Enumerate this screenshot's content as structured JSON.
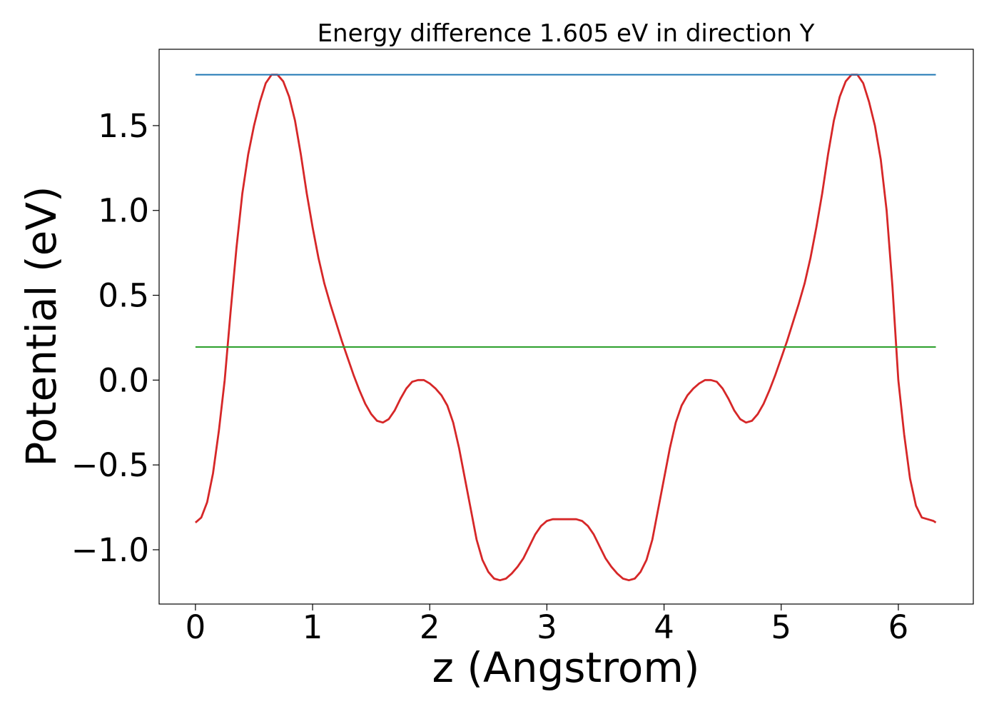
{
  "chart_data": {
    "type": "line",
    "title": "Energy difference 1.605 eV in direction Y",
    "xlabel": "z (Angstrom)",
    "ylabel": "Potential (eV)",
    "xlim": [
      -0.31,
      6.64
    ],
    "ylim": [
      -1.32,
      1.95
    ],
    "xticks": [
      0,
      1,
      2,
      3,
      4,
      5,
      6
    ],
    "yticks": [
      -1.0,
      -0.5,
      0.0,
      0.5,
      1.0,
      1.5
    ],
    "xtick_labels": [
      "0",
      "1",
      "2",
      "3",
      "4",
      "5",
      "6"
    ],
    "ytick_labels": [
      "−1.0",
      "−0.5",
      "0.0",
      "0.5",
      "1.0",
      "1.5"
    ],
    "grid": false,
    "series": [
      {
        "color": "#d62728",
        "x": [
          0.0,
          0.05,
          0.1,
          0.15,
          0.2,
          0.25,
          0.3,
          0.35,
          0.4,
          0.45,
          0.5,
          0.55,
          0.6,
          0.65,
          0.7,
          0.75,
          0.8,
          0.85,
          0.9,
          0.95,
          1.0,
          1.05,
          1.1,
          1.15,
          1.2,
          1.25,
          1.3,
          1.35,
          1.4,
          1.45,
          1.5,
          1.55,
          1.6,
          1.65,
          1.7,
          1.75,
          1.8,
          1.85,
          1.9,
          1.95,
          2.0,
          2.05,
          2.1,
          2.15,
          2.2,
          2.25,
          2.3,
          2.35,
          2.4,
          2.45,
          2.5,
          2.55,
          2.6,
          2.65,
          2.7,
          2.75,
          2.8,
          2.85,
          2.9,
          2.95,
          3.0,
          3.05,
          3.1,
          3.15,
          3.2,
          3.25,
          3.3,
          3.35,
          3.4,
          3.45,
          3.5,
          3.55,
          3.6,
          3.65,
          3.7,
          3.75,
          3.8,
          3.85,
          3.9,
          3.95,
          4.0,
          4.05,
          4.1,
          4.15,
          4.2,
          4.25,
          4.3,
          4.35,
          4.4,
          4.45,
          4.5,
          4.55,
          4.6,
          4.65,
          4.7,
          4.75,
          4.8,
          4.85,
          4.9,
          4.95,
          5.0,
          5.05,
          5.1,
          5.15,
          5.2,
          5.25,
          5.3,
          5.35,
          5.4,
          5.45,
          5.5,
          5.55,
          5.6,
          5.65,
          5.7,
          5.75,
          5.8,
          5.85,
          5.9,
          5.95,
          6.0,
          6.05,
          6.1,
          6.15,
          6.2,
          6.25,
          6.3,
          6.32
        ],
        "values": [
          -0.84,
          -0.81,
          -0.72,
          -0.55,
          -0.3,
          0.0,
          0.4,
          0.78,
          1.1,
          1.33,
          1.5,
          1.64,
          1.75,
          1.8,
          1.8,
          1.76,
          1.67,
          1.53,
          1.33,
          1.1,
          0.9,
          0.72,
          0.57,
          0.45,
          0.34,
          0.23,
          0.13,
          0.03,
          -0.06,
          -0.14,
          -0.2,
          -0.24,
          -0.25,
          -0.23,
          -0.18,
          -0.11,
          -0.05,
          -0.01,
          0.0,
          0.0,
          -0.02,
          -0.05,
          -0.09,
          -0.15,
          -0.25,
          -0.4,
          -0.58,
          -0.76,
          -0.94,
          -1.06,
          -1.13,
          -1.17,
          -1.18,
          -1.17,
          -1.14,
          -1.1,
          -1.05,
          -0.98,
          -0.91,
          -0.86,
          -0.83,
          -0.82,
          -0.82,
          -0.82,
          -0.82,
          -0.82,
          -0.83,
          -0.86,
          -0.91,
          -0.98,
          -1.05,
          -1.1,
          -1.14,
          -1.17,
          -1.18,
          -1.17,
          -1.13,
          -1.06,
          -0.94,
          -0.76,
          -0.58,
          -0.4,
          -0.25,
          -0.15,
          -0.09,
          -0.05,
          -0.02,
          0.0,
          0.0,
          -0.01,
          -0.05,
          -0.11,
          -0.18,
          -0.23,
          -0.25,
          -0.24,
          -0.2,
          -0.14,
          -0.06,
          0.03,
          0.13,
          0.23,
          0.34,
          0.45,
          0.57,
          0.72,
          0.9,
          1.1,
          1.33,
          1.53,
          1.67,
          1.76,
          1.8,
          1.8,
          1.75,
          1.64,
          1.5,
          1.3,
          1.0,
          0.55,
          0.0,
          -0.32,
          -0.58,
          -0.74,
          -0.81,
          -0.82,
          -0.83,
          -0.84
        ]
      },
      {
        "color": "#1f77b4",
        "x": [
          0.0,
          6.32
        ],
        "values": [
          1.8,
          1.8
        ]
      },
      {
        "color": "#2ca02c",
        "x": [
          0.0,
          6.32
        ],
        "values": [
          0.195,
          0.195
        ]
      }
    ]
  }
}
